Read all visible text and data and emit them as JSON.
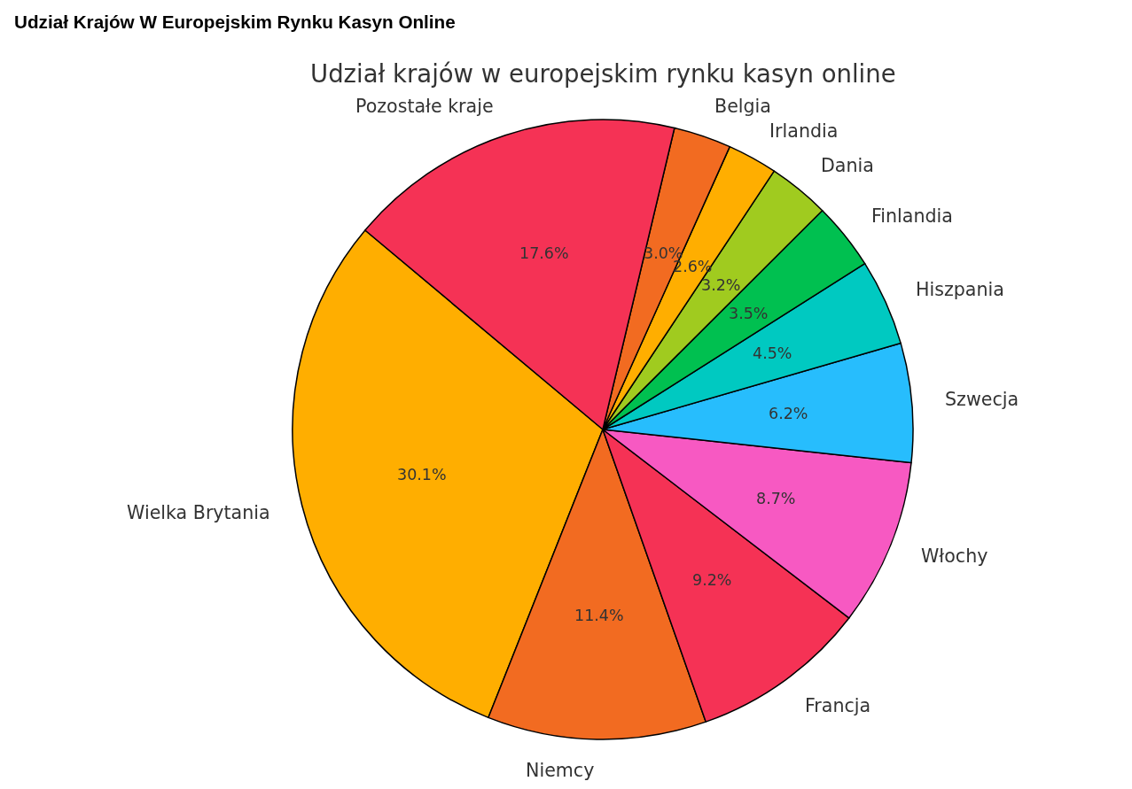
{
  "chart_data": {
    "type": "pie",
    "title": "Udział Krajów W Europejskim Rynku Kasyn Online",
    "subtitle": "Udział krajów w europejskim rynku kasyn online",
    "categories": [
      "Wielka Brytania",
      "Niemcy",
      "Francja",
      "Włochy",
      "Szwecja",
      "Hiszpania",
      "Finlandia",
      "Dania",
      "Irlandia",
      "Belgia",
      "Pozostałe kraje"
    ],
    "values": [
      30.1,
      11.4,
      9.2,
      8.7,
      6.2,
      4.5,
      3.5,
      3.2,
      2.6,
      3.0,
      17.6
    ],
    "value_labels": [
      "30.1%",
      "11.4%",
      "9.2%",
      "8.7%",
      "6.2%",
      "4.5%",
      "3.5%",
      "3.2%",
      "2.6%",
      "3.0%",
      "17.6%"
    ],
    "colors": [
      "#ffae00",
      "#f26b21",
      "#f53255",
      "#f759c2",
      "#27bdfd",
      "#00c9c1",
      "#00c050",
      "#a0cb1f",
      "#ffae00",
      "#f26b21",
      "#f53255"
    ]
  }
}
